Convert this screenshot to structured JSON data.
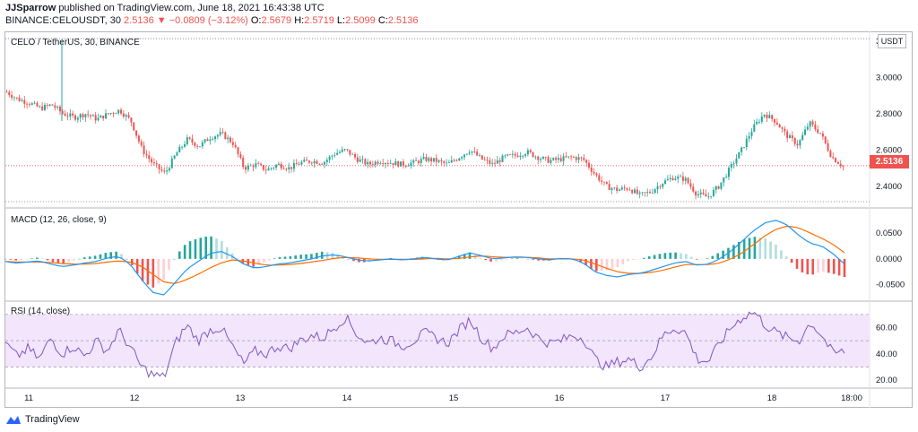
{
  "header": {
    "author": "JJSparrow",
    "published": "published on TradingView.com, June 18, 2021 16:43:38 UTC",
    "ticker": "BINANCE:CELOUSDT, 30",
    "last": "2.5136",
    "change_arrow": "▼",
    "change": "−0.0809 (−3.12%)",
    "o_label": "O:",
    "o": "2.5679",
    "h_label": "H:",
    "h": "2.5719",
    "l_label": "L:",
    "l": "2.5099",
    "c_label": "C:",
    "c": "2.5136"
  },
  "colors": {
    "up": "#26a69a",
    "down": "#ef5350",
    "macd": "#2196f3",
    "signal": "#ff6d00",
    "rsi": "#7e57c2",
    "rsi_band": "#f3e5fc"
  },
  "price_tag": "2.5136",
  "currency": "USDT",
  "footer": {
    "brand": "TradingView"
  },
  "chart_data": [
    {
      "type": "candlestick",
      "title": "CELO / TetherUS, 30, BINANCE",
      "y_ticks": [
        "3.2000",
        "3.0000",
        "2.8000",
        "2.6000",
        "2.4000"
      ],
      "ylim": [
        2.3,
        3.22
      ],
      "x_ticks": [
        "11",
        "12",
        "13",
        "14",
        "15",
        "16",
        "17",
        "18",
        "18:00"
      ],
      "last_price": 2.5136,
      "trajectory_close": [
        2.92,
        2.88,
        2.86,
        2.83,
        2.85,
        2.8,
        2.78,
        2.8,
        2.77,
        2.8,
        2.82,
        2.76,
        2.6,
        2.52,
        2.47,
        2.58,
        2.66,
        2.62,
        2.67,
        2.69,
        2.64,
        2.5,
        2.52,
        2.49,
        2.52,
        2.5,
        2.53,
        2.54,
        2.53,
        2.58,
        2.6,
        2.55,
        2.52,
        2.54,
        2.53,
        2.52,
        2.53,
        2.55,
        2.54,
        2.52,
        2.56,
        2.6,
        2.55,
        2.52,
        2.56,
        2.57,
        2.59,
        2.56,
        2.54,
        2.55,
        2.56,
        2.55,
        2.47,
        2.4,
        2.38,
        2.39,
        2.35,
        2.37,
        2.42,
        2.45,
        2.44,
        2.36,
        2.34,
        2.4,
        2.5,
        2.6,
        2.72,
        2.8,
        2.76,
        2.68,
        2.63,
        2.75,
        2.69,
        2.56,
        2.51
      ]
    },
    {
      "type": "line",
      "title": "MACD (12, 26, close, 9)",
      "y_ticks": [
        "0.0500",
        "0.0000",
        "-0.0500"
      ],
      "ylim": [
        -0.075,
        0.085
      ],
      "series": [],
      "trajectory_macd": [
        -0.005,
        -0.008,
        -0.006,
        -0.004,
        -0.01,
        -0.015,
        -0.012,
        -0.008,
        -0.005,
        0.002,
        0.005,
        -0.01,
        -0.04,
        -0.065,
        -0.07,
        -0.045,
        -0.02,
        -0.005,
        0.01,
        0.015,
        0.005,
        -0.01,
        -0.018,
        -0.015,
        -0.01,
        -0.008,
        -0.004,
        0.0,
        0.006,
        0.008,
        0.004,
        -0.002,
        -0.004,
        -0.002,
        0.0,
        -0.002,
        0.0,
        0.003,
        0.0,
        -0.002,
        0.005,
        0.012,
        0.006,
        0.0,
        0.002,
        0.004,
        0.003,
        0.0,
        -0.002,
        0.001,
        0.0,
        -0.008,
        -0.025,
        -0.032,
        -0.035,
        -0.03,
        -0.028,
        -0.022,
        -0.015,
        -0.008,
        -0.005,
        -0.012,
        -0.01,
        0.0,
        0.015,
        0.035,
        0.055,
        0.07,
        0.075,
        0.065,
        0.045,
        0.03,
        0.025,
        0.01,
        -0.01
      ],
      "trajectory_signal": [
        -0.005,
        -0.006,
        -0.006,
        -0.006,
        -0.007,
        -0.009,
        -0.01,
        -0.01,
        -0.009,
        -0.006,
        -0.004,
        -0.006,
        -0.014,
        -0.03,
        -0.045,
        -0.048,
        -0.04,
        -0.03,
        -0.018,
        -0.008,
        -0.002,
        -0.004,
        -0.008,
        -0.012,
        -0.012,
        -0.011,
        -0.009,
        -0.006,
        -0.003,
        0.001,
        0.003,
        0.002,
        0.0,
        -0.001,
        -0.001,
        -0.001,
        -0.001,
        0.0,
        0.001,
        0.0,
        0.001,
        0.004,
        0.006,
        0.004,
        0.003,
        0.003,
        0.003,
        0.002,
        0.0,
        0.0,
        0.0,
        -0.002,
        -0.01,
        -0.018,
        -0.025,
        -0.028,
        -0.028,
        -0.026,
        -0.022,
        -0.016,
        -0.011,
        -0.011,
        -0.011,
        -0.008,
        0.0,
        0.012,
        0.028,
        0.045,
        0.058,
        0.064,
        0.06,
        0.05,
        0.04,
        0.028,
        0.012
      ]
    },
    {
      "type": "line",
      "title": "RSI (14, close)",
      "y_ticks": [
        "60.00",
        "40.00",
        "20.00"
      ],
      "ylim": [
        16,
        76
      ],
      "band": [
        30,
        70
      ],
      "mid": 50,
      "trajectory_rsi": [
        48,
        38,
        44,
        36,
        52,
        40,
        46,
        38,
        50,
        42,
        58,
        45,
        30,
        24,
        22,
        48,
        62,
        50,
        58,
        60,
        46,
        32,
        42,
        40,
        46,
        44,
        50,
        54,
        52,
        60,
        68,
        55,
        48,
        52,
        50,
        46,
        50,
        56,
        52,
        48,
        58,
        66,
        52,
        44,
        54,
        56,
        60,
        52,
        48,
        50,
        54,
        52,
        36,
        30,
        34,
        36,
        30,
        38,
        54,
        60,
        56,
        36,
        34,
        48,
        60,
        68,
        72,
        62,
        56,
        52,
        50,
        64,
        54,
        40,
        42
      ]
    }
  ]
}
